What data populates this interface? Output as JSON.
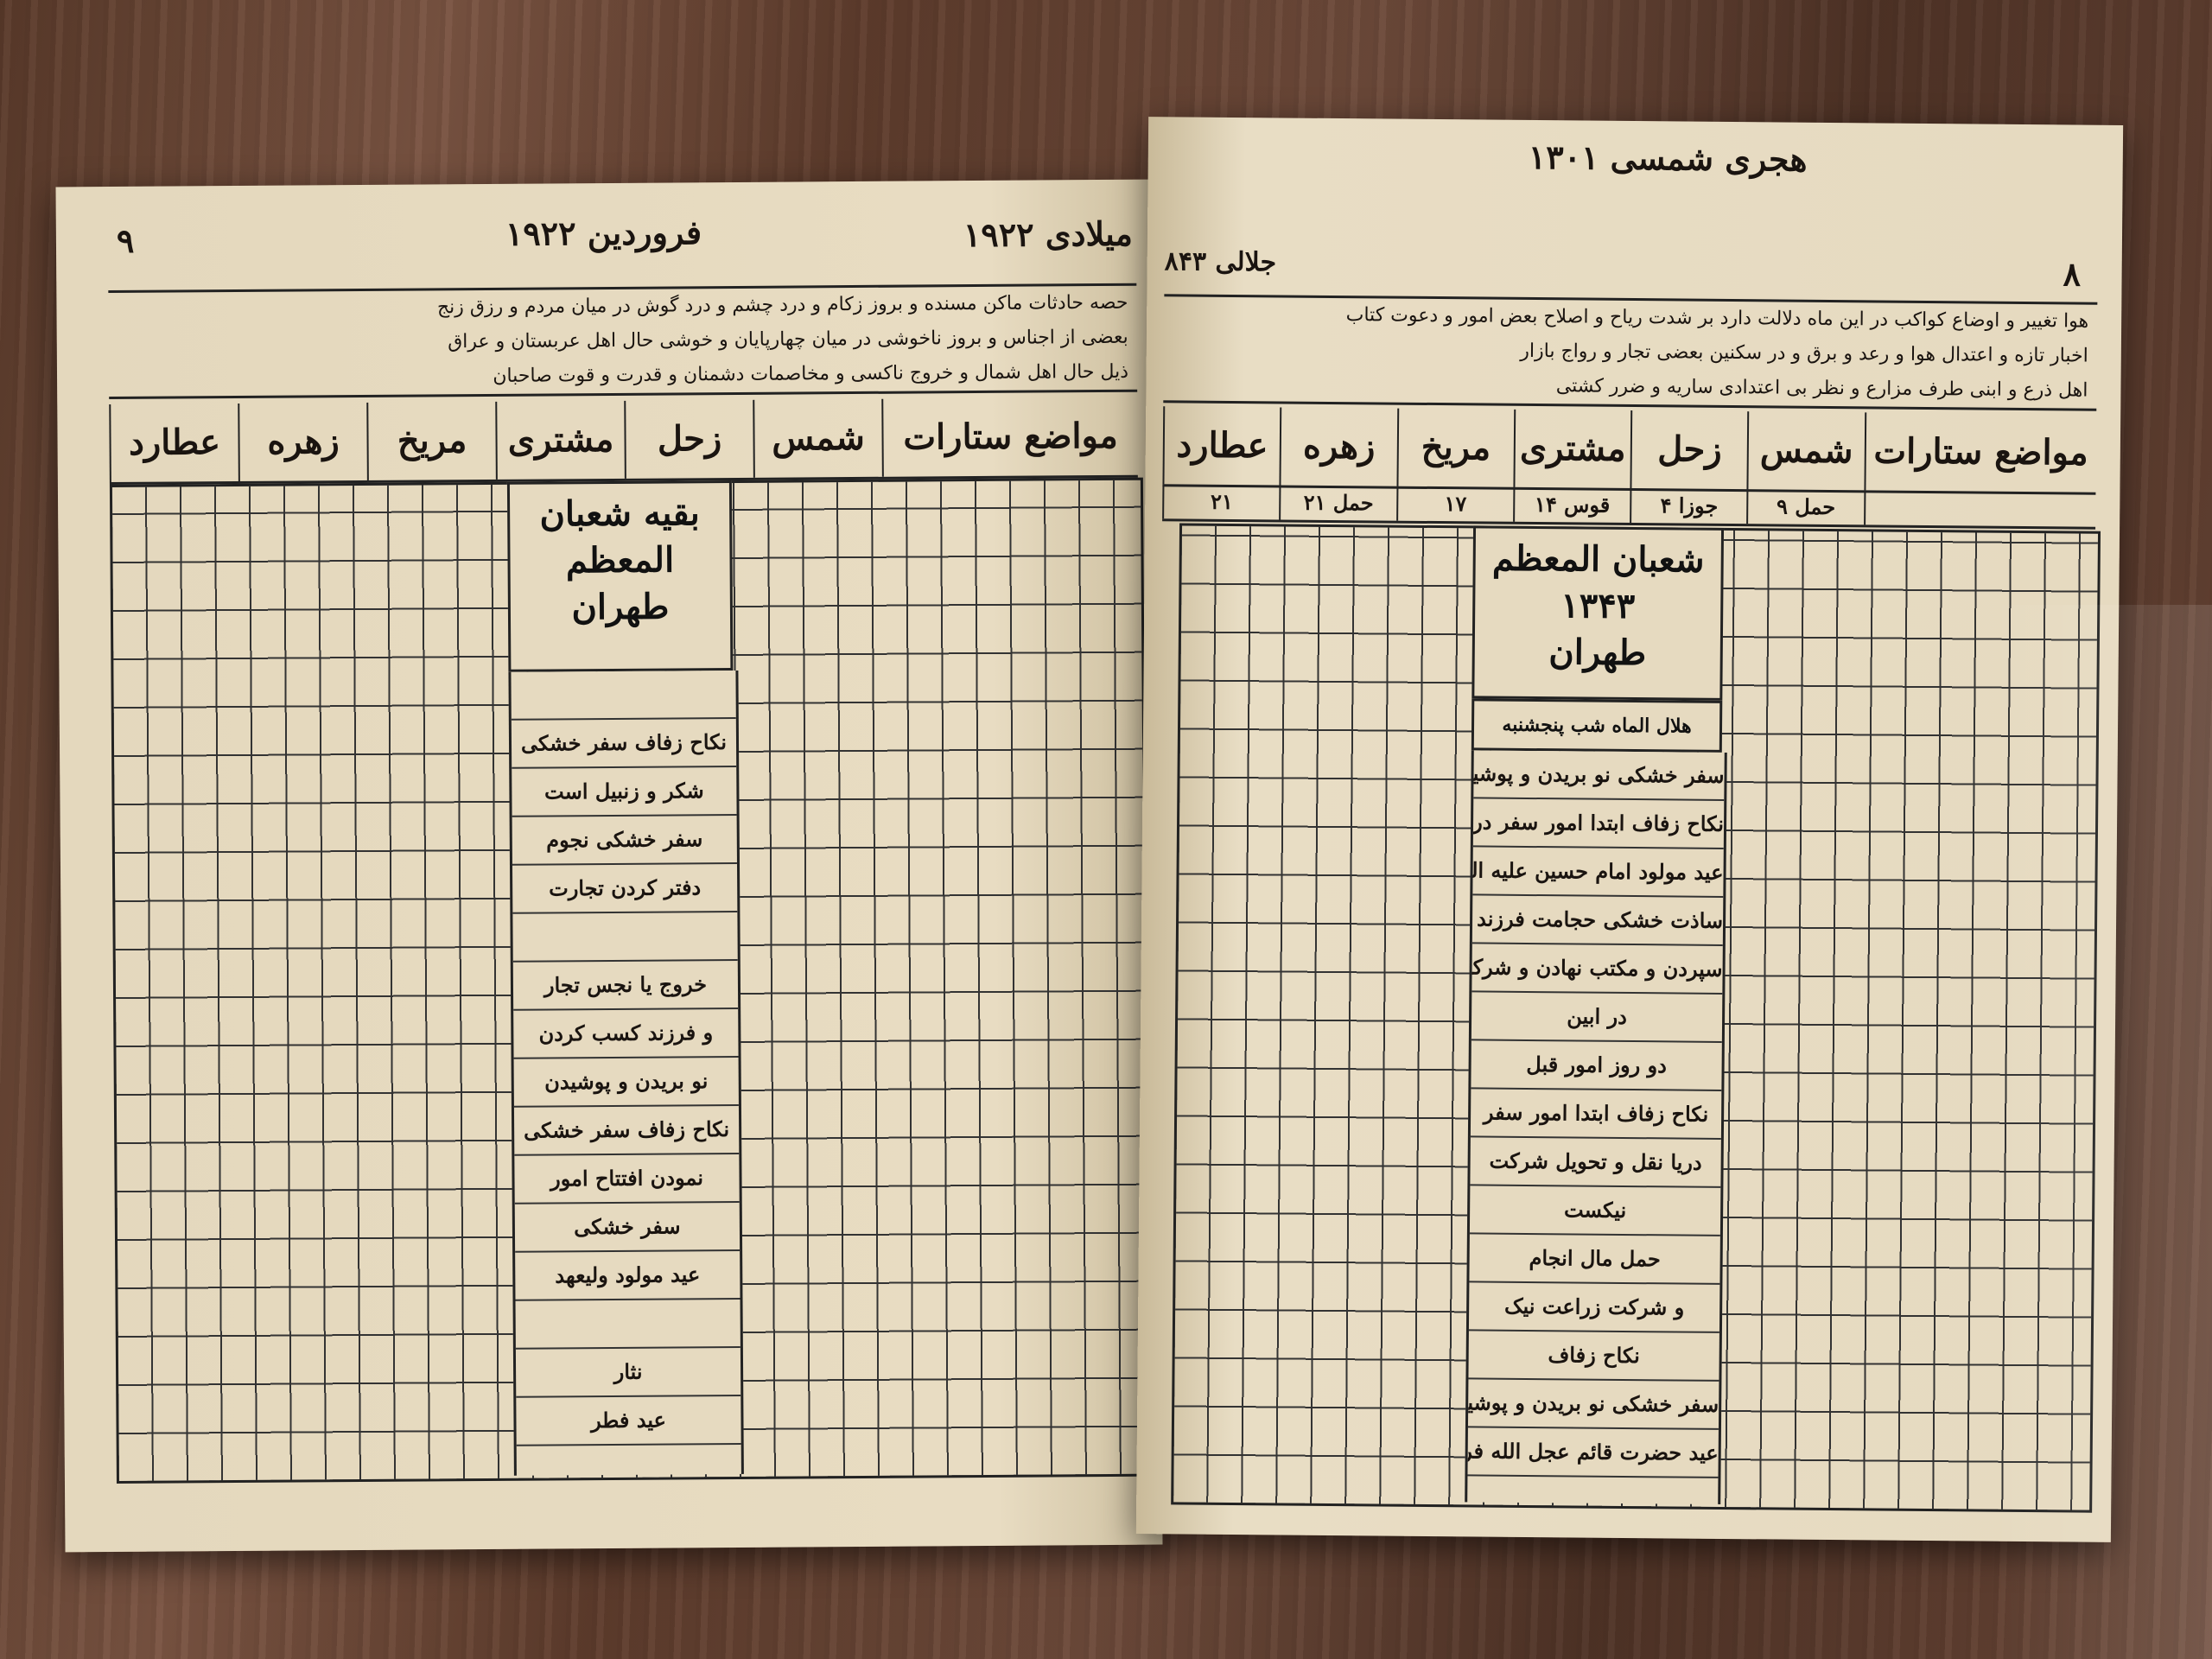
{
  "left_page": {
    "page_number": "۹",
    "header_center": "فروردین ۱۹۲۲",
    "header_right": "میلادی ۱۹۲۲",
    "forecast_lines": [
      "حصه حادثات ماکن مسنده و بروز زکام و درد چشم و درد گوش در میان مردم و رزق زنج",
      "بعضی از اجناس و بروز ناخوشی در میان چهارپایان و خوشی حال اهل عربستان و عراق",
      "ذیل حال اهل شمال و خروج ناکسی و مخاصمات دشمنان و قدرت و قوت صاحبان"
    ],
    "planet_headers": [
      "مواضع ستارات",
      "شمس",
      "زحل",
      "مشتری",
      "مریخ",
      "زهره",
      "عطارد"
    ],
    "month_title": "بقیه شعبان المعظم",
    "city": "طهران",
    "events": [
      "",
      "نکاح زفاف سفر خشکی",
      "شکر و زنبیل است",
      "سفر خشکی نجوم",
      "دفتر کردن تجارت",
      "",
      "خروج یا نجس تجار",
      "و فرزند کسب کردن",
      "نو بریدن و پوشیدن",
      "نکاح زفاف سفر خشکی",
      "نمودن افتتاح امور",
      "سفر خشکی",
      "عید مولود ولیعهد",
      "",
      "نثار",
      "عید فطر"
    ]
  },
  "right_page": {
    "page_number": "۸",
    "header_center": "هجری شمسی ۱۳۰۱",
    "header_left": "جلالی ۸۴۳",
    "forecast_lines": [
      "هوا تغییر و اوضاع کواکب در این ماه دلالت دارد بر شدت ریاح و اصلاح بعض امور و دعوت کتاب",
      "اخبار تازه و اعتدال هوا و رعد و برق و در سکنین بعضی تجار و رواج بازار",
      "اهل ذرع و ابنی طرف مزارع و نظر بی اعتدادی ساریه و ضرر کشتی"
    ],
    "planet_headers": [
      "مواضع ستارات",
      "شمس",
      "زحل",
      "مشتری",
      "مریخ",
      "زهره",
      "عطارد"
    ],
    "planet_positions": [
      "حمل ۹",
      "جوزا ۴",
      "قوس ۱۴",
      "۱۷",
      "حمل ۲۱",
      "۲۱"
    ],
    "month_title": "شعبان المعظم ۱۳۴۳",
    "city": "طهران",
    "crescent_note": "هلال الماه شب پنجشنبه",
    "events": [
      "سفر خشکی نو بریدن و پوشیدن",
      "نکاح زفاف ابتدا امور سفر دریا",
      "عید مولود امام حسین علیه السلام",
      "ساذت خشکی حجامت فرزند بدنیا",
      "سپردن و مکتب نهادن و شرکت",
      "در ابین",
      "دو روز امور قبل",
      "نکاح زفاف ابتدا امور سفر",
      "دریا نقل و تحویل شرکت",
      "نیکست",
      "حمل مال انجام",
      "و شرکت زراعت نیک",
      "نکاح زفاف",
      "سفر خشکی نو بریدن و پوشیدن نیک",
      "عید حضرت قائم عجل الله فرجه"
    ]
  }
}
